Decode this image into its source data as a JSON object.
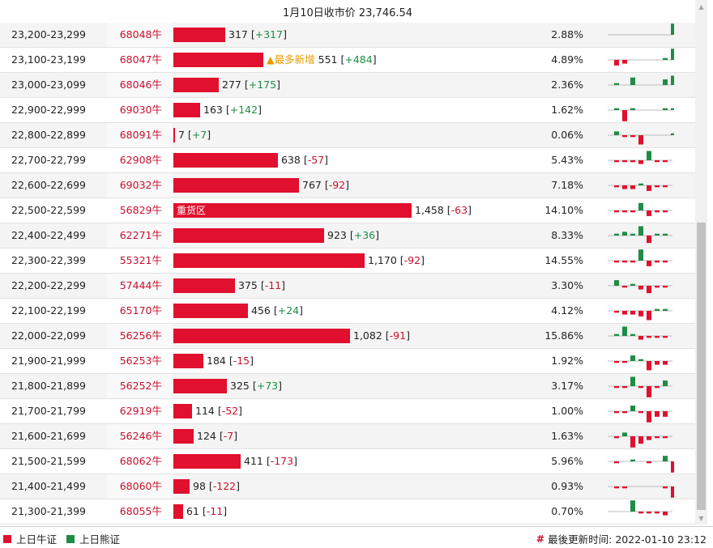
{
  "header": {
    "title": "1月10日收市价 23,746.54"
  },
  "colors": {
    "bull": "#e0102e",
    "bear": "#1e8c45",
    "note": "#e89a00",
    "baseline": "#bbbbbb"
  },
  "rows": [
    {
      "range": "23,200-23,299",
      "code": "68048牛",
      "value": 317,
      "value_text": "317",
      "delta": "+317",
      "pct": "2.88%",
      "spark": [
        0,
        0,
        0,
        0,
        0,
        0,
        0,
        6
      ]
    },
    {
      "range": "23,100-23,199",
      "code": "68047牛",
      "value": 551,
      "value_text": "551",
      "delta": "+484",
      "pct": "4.89%",
      "note": "▲最多新增",
      "spark": [
        -3,
        -2,
        0,
        0,
        0,
        0,
        1,
        6
      ]
    },
    {
      "range": "23,000-23,099",
      "code": "68046牛",
      "value": 277,
      "value_text": "277",
      "delta": "+175",
      "pct": "2.36%",
      "spark": [
        1,
        0,
        4,
        0,
        0,
        0,
        3,
        5
      ]
    },
    {
      "range": "22,900-22,999",
      "code": "69030牛",
      "value": 163,
      "value_text": "163",
      "delta": "+142",
      "pct": "1.62%",
      "spark": [
        1,
        -6,
        1,
        0,
        0,
        0,
        1,
        1
      ]
    },
    {
      "range": "22,800-22,899",
      "code": "68091牛",
      "value": 7,
      "value_text": "7",
      "delta": "+7",
      "pct": "0.06%",
      "spark": [
        2,
        -1,
        -1,
        -5,
        0,
        0,
        0,
        1
      ]
    },
    {
      "range": "22,700-22,799",
      "code": "62908牛",
      "value": 638,
      "value_text": "638",
      "delta": "-57",
      "pct": "5.43%",
      "spark": [
        -1,
        -1,
        -1,
        -2,
        5,
        -1,
        -1,
        0
      ]
    },
    {
      "range": "22,600-22,699",
      "code": "69032牛",
      "value": 767,
      "value_text": "767",
      "delta": "-92",
      "pct": "7.18%",
      "spark": [
        -1,
        -2,
        -2,
        1,
        -3,
        -1,
        -1,
        0
      ]
    },
    {
      "range": "22,500-22,599",
      "code": "56829牛",
      "value": 1458,
      "value_text": "1,458",
      "delta": "-63",
      "pct": "14.10%",
      "label": "重货区",
      "spark": [
        -1,
        -1,
        -1,
        4,
        -3,
        -1,
        -1,
        0
      ]
    },
    {
      "range": "22,400-22,499",
      "code": "62271牛",
      "value": 923,
      "value_text": "923",
      "delta": "+36",
      "pct": "8.33%",
      "spark": [
        1,
        2,
        1,
        5,
        -4,
        1,
        1,
        0
      ]
    },
    {
      "range": "22,300-22,399",
      "code": "55321牛",
      "value": 1170,
      "value_text": "1,170",
      "delta": "-92",
      "pct": "14.55%",
      "spark": [
        -1,
        -1,
        -1,
        6,
        -3,
        -1,
        -1,
        0
      ]
    },
    {
      "range": "22,200-22,299",
      "code": "57444牛",
      "value": 375,
      "value_text": "375",
      "delta": "-11",
      "pct": "3.30%",
      "spark": [
        3,
        -1,
        1,
        -2,
        -4,
        -1,
        -1,
        0
      ]
    },
    {
      "range": "22,100-22,199",
      "code": "65170牛",
      "value": 456,
      "value_text": "456",
      "delta": "+24",
      "pct": "4.12%",
      "spark": [
        -1,
        -2,
        -2,
        -3,
        -5,
        1,
        1,
        0
      ]
    },
    {
      "range": "22,000-22,099",
      "code": "56256牛",
      "value": 1082,
      "value_text": "1,082",
      "delta": "-91",
      "pct": "15.86%",
      "spark": [
        1,
        5,
        1,
        -2,
        -1,
        -1,
        -1,
        0
      ]
    },
    {
      "range": "21,900-21,999",
      "code": "56253牛",
      "value": 184,
      "value_text": "184",
      "delta": "-15",
      "pct": "1.92%",
      "spark": [
        -1,
        -1,
        3,
        1,
        -5,
        -2,
        -2,
        0
      ]
    },
    {
      "range": "21,800-21,899",
      "code": "56252牛",
      "value": 325,
      "value_text": "325",
      "delta": "+73",
      "pct": "3.17%",
      "spark": [
        -1,
        -1,
        5,
        -1,
        -6,
        -1,
        3,
        0
      ]
    },
    {
      "range": "21,700-21,799",
      "code": "62919牛",
      "value": 114,
      "value_text": "114",
      "delta": "-52",
      "pct": "1.00%",
      "spark": [
        -1,
        -1,
        3,
        -1,
        -6,
        -3,
        -3,
        0
      ]
    },
    {
      "range": "21,600-21,699",
      "code": "56246牛",
      "value": 124,
      "value_text": "124",
      "delta": "-7",
      "pct": "1.63%",
      "spark": [
        -1,
        2,
        -6,
        -4,
        -2,
        -1,
        -1,
        0
      ]
    },
    {
      "range": "21,500-21,599",
      "code": "68062牛",
      "value": 411,
      "value_text": "411",
      "delta": "-173",
      "pct": "5.96%",
      "spark": [
        -1,
        0,
        1,
        0,
        -1,
        0,
        3,
        -6
      ]
    },
    {
      "range": "21,400-21,499",
      "code": "68060牛",
      "value": 98,
      "value_text": "98",
      "delta": "-122",
      "pct": "0.93%",
      "spark": [
        -1,
        -1,
        0,
        0,
        0,
        0,
        -1,
        -6
      ]
    },
    {
      "range": "21,300-21,399",
      "code": "68055牛",
      "value": 61,
      "value_text": "61",
      "delta": "-11",
      "pct": "0.70%",
      "spark": [
        0,
        0,
        6,
        -1,
        -1,
        -1,
        -2,
        0
      ]
    }
  ],
  "legend": {
    "bull_label": "上日牛证",
    "bear_label": "上日熊证",
    "updated_prefix": "#",
    "updated_text": "最後更新时间: 2022-01-10 23:12"
  }
}
